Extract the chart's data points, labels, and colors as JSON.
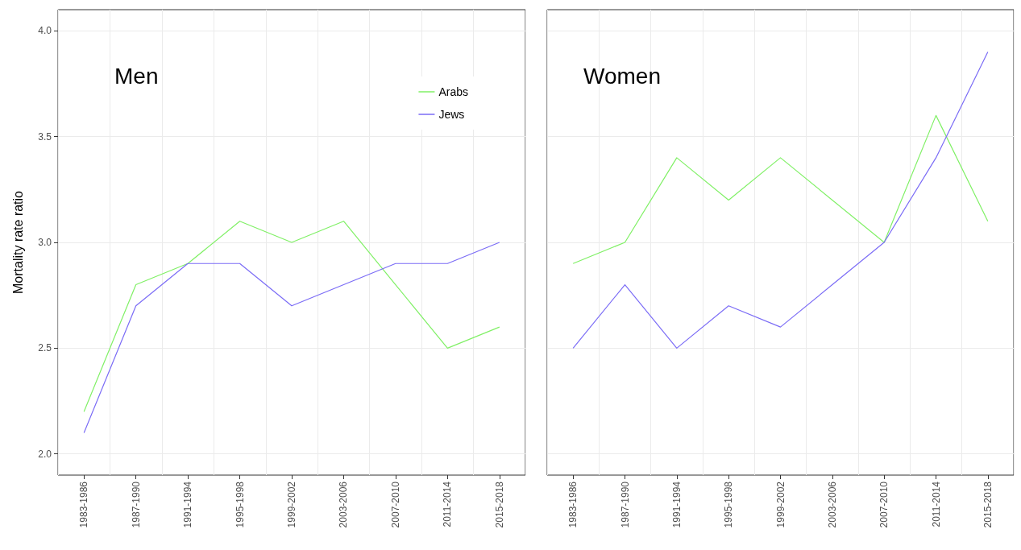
{
  "chart_data": [
    {
      "type": "line",
      "title": "Men",
      "ylabel": "Mortality rate ratio",
      "categories": [
        "1983-1986",
        "1987-1990",
        "1991-1994",
        "1995-1998",
        "1999-2002",
        "2003-2006",
        "2007-2010",
        "2011-2014",
        "2015-2018"
      ],
      "series": [
        {
          "name": "Arabs",
          "color": "#80f066",
          "values": [
            2.2,
            2.8,
            2.9,
            3.1,
            3.0,
            3.1,
            2.8,
            2.5,
            2.6
          ]
        },
        {
          "name": "Jews",
          "color": "#7b6cf6",
          "values": [
            2.1,
            2.7,
            2.9,
            2.9,
            2.7,
            2.8,
            2.9,
            2.9,
            3.0
          ]
        }
      ],
      "ylim": [
        1.9,
        4.1
      ],
      "yticks": [
        {
          "value": 2,
          "label": "2.0"
        },
        {
          "value": 2.5,
          "label": "2.5"
        },
        {
          "value": 3,
          "label": "3.0"
        },
        {
          "value": 3.5,
          "label": "3.5"
        },
        {
          "value": 4,
          "label": "4.0"
        }
      ],
      "grid": true,
      "legend": "top right",
      "marker": "none"
    },
    {
      "type": "line",
      "title": "Women",
      "categories": [
        "1983-1986",
        "1987-1990",
        "1991-1994",
        "1995-1998",
        "1999-2002",
        "2003-2006",
        "2007-2010",
        "2011-2014",
        "2015-2018"
      ],
      "series": [
        {
          "color": "#80f066",
          "values": [
            2.9,
            3.0,
            3.4,
            3.2,
            3.4,
            3.2,
            3.0,
            3.6,
            3.1
          ]
        },
        {
          "color": "#7b6cf6",
          "values": [
            2.5,
            2.8,
            2.5,
            2.7,
            2.6,
            2.8,
            3.0,
            3.4,
            3.9
          ]
        }
      ],
      "ylim": [
        1.9,
        4.1
      ],
      "yticks": [
        2,
        2.5,
        3,
        3.5,
        4
      ],
      "grid": true,
      "tick_labels": "x",
      "marker": "none"
    }
  ]
}
